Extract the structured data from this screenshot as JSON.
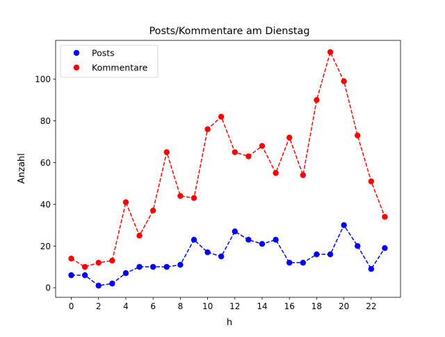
{
  "chart_data": {
    "type": "line",
    "title": "Posts/Kommentare am Dienstag",
    "xlabel": "h",
    "ylabel": "Anzahl",
    "x": [
      0,
      1,
      2,
      3,
      4,
      5,
      6,
      7,
      8,
      9,
      10,
      11,
      12,
      13,
      14,
      15,
      16,
      17,
      18,
      19,
      20,
      21,
      22,
      23
    ],
    "xlim": [
      -1.15,
      24.15
    ],
    "ylim": [
      -4.6,
      118.6
    ],
    "xticks": [
      0,
      2,
      4,
      6,
      8,
      10,
      12,
      14,
      16,
      18,
      20,
      22
    ],
    "yticks": [
      0,
      20,
      40,
      60,
      80,
      100
    ],
    "grid": false,
    "legend_position": "top-left",
    "series": [
      {
        "name": "Posts",
        "color": "#0000ff",
        "linestyle": "dashed",
        "marker": "circle",
        "values": [
          6,
          6,
          1,
          2,
          7,
          10,
          10,
          10,
          11,
          23,
          17,
          15,
          27,
          23,
          21,
          23,
          12,
          12,
          16,
          16,
          30,
          20,
          9,
          19
        ]
      },
      {
        "name": "Kommentare",
        "color": "#ff0000",
        "linestyle": "dashed",
        "marker": "circle",
        "values": [
          14,
          10,
          12,
          13,
          41,
          25,
          37,
          65,
          44,
          43,
          76,
          82,
          65,
          63,
          68,
          55,
          72,
          54,
          90,
          113,
          99,
          73,
          51,
          34
        ]
      }
    ]
  }
}
